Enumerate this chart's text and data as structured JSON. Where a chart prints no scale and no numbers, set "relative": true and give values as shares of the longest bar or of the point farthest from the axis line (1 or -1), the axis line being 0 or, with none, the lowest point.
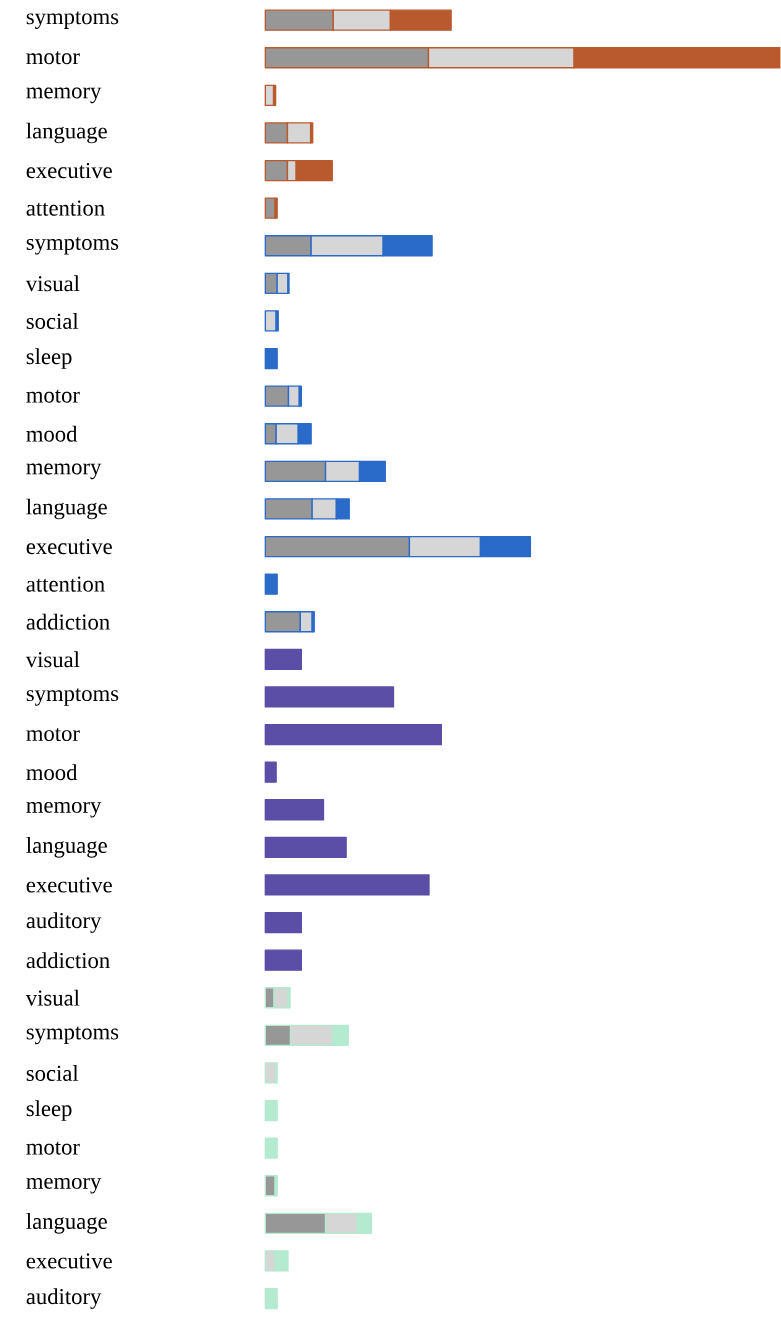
{
  "chart_data": {
    "type": "bar",
    "orientation": "horizontal",
    "stacked": true,
    "relative": true,
    "categories": [
      "symptoms",
      "motor",
      "memory",
      "language",
      "executive",
      "attention",
      "symptoms",
      "visual",
      "social",
      "sleep",
      "motor",
      "mood",
      "memory",
      "language",
      "executive",
      "attention",
      "addiction",
      "visual",
      "symptoms",
      "motor",
      "mood",
      "memory",
      "language",
      "executive",
      "auditory",
      "addiction",
      "visual",
      "symptoms",
      "social",
      "sleep",
      "motor",
      "memory",
      "language",
      "executive",
      "auditory"
    ],
    "series": [
      {
        "color": "#979797",
        "values": [
          0.132,
          0.317,
          null,
          0.043,
          0.043,
          0.019,
          0.089,
          0.023,
          null,
          null,
          0.045,
          0.021,
          0.117,
          0.091,
          0.28,
          null,
          0.068,
          null,
          null,
          null,
          null,
          null,
          null,
          null,
          null,
          null,
          0.017,
          0.049,
          null,
          null,
          null,
          0.019,
          0.117,
          null,
          null
        ]
      },
      {
        "color": "#d6d6d6",
        "values": [
          0.111,
          0.283,
          0.016,
          0.045,
          0.017,
          null,
          0.14,
          0.021,
          0.021,
          null,
          0.021,
          0.043,
          0.066,
          0.047,
          0.138,
          null,
          0.023,
          null,
          null,
          null,
          null,
          null,
          null,
          null,
          null,
          null,
          0.027,
          0.083,
          0.021,
          null,
          null,
          null,
          0.062,
          0.019,
          null
        ]
      },
      {
        "colors": [
          "#b95a2e",
          "#b95a2e",
          "#b95a2e",
          "#b95a2e",
          "#b95a2e",
          "#b95a2e",
          "#2a6ac8",
          "#2a6ac8",
          "#2a6ac8",
          "#2a6ac8",
          "#2a6ac8",
          "#2a6ac8",
          "#2a6ac8",
          "#2a6ac8",
          "#2a6ac8",
          "#2a6ac8",
          "#2a6ac8",
          "#5b4ea6",
          "#5b4ea6",
          "#5b4ea6",
          "#5b4ea6",
          "#5b4ea6",
          "#5b4ea6",
          "#5b4ea6",
          "#5b4ea6",
          "#5b4ea6",
          "#b3ead0",
          "#b3ead0",
          "#b3ead0",
          "#b3ead0",
          "#b3ead0",
          "#b3ead0",
          "#b3ead0",
          "#b3ead0",
          "#b3ead0"
        ],
        "values": [
          0.118,
          0.4,
          0.004,
          0.004,
          0.07,
          0.004,
          0.095,
          0.002,
          0.004,
          0.023,
          0.004,
          0.025,
          0.05,
          0.025,
          0.097,
          0.023,
          0.004,
          0.07,
          0.249,
          0.342,
          0.021,
          0.113,
          0.157,
          0.318,
          0.07,
          0.07,
          0.004,
          0.029,
          0.002,
          0.023,
          0.023,
          0.004,
          0.027,
          0.025,
          0.023
        ]
      }
    ]
  }
}
